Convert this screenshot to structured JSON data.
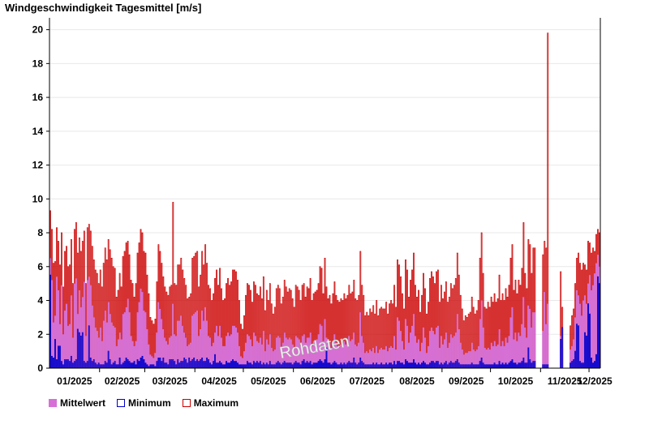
{
  "title": "Windgeschwindigkeit Tagesmittel [m/s]",
  "watermark": "Rohdaten",
  "colors": {
    "mean": "#d670d6",
    "min": "#0000cc",
    "max": "#cc0000",
    "grid": "#e8e8e8"
  },
  "legend": [
    {
      "key": "mean",
      "label": "Mittelwert",
      "style": "filled"
    },
    {
      "key": "min",
      "label": "Minimum",
      "style": "outline"
    },
    {
      "key": "max",
      "label": "Maximum",
      "style": "outline"
    }
  ],
  "chart_data": {
    "type": "bar",
    "ylim": [
      0,
      20.7
    ],
    "y_ticks": [
      0,
      2,
      4,
      6,
      8,
      10,
      12,
      14,
      16,
      18,
      20
    ],
    "x_ticks": [
      "01/2025",
      "02/2025",
      "03/2025",
      "04/2025",
      "05/2025",
      "06/2025",
      "07/2025",
      "08/2025",
      "09/2025",
      "10/2025",
      "11/2025",
      "12/2025"
    ],
    "grid": "horizontal",
    "legend_position": "bottom-left",
    "series_names": {
      "mean": "Mittelwert",
      "min": "Minimum",
      "max": "Maximum"
    },
    "day_groups": [
      {
        "days": 31,
        "max": [
          9.3,
          8.2,
          6.2,
          6.3,
          8.3,
          7.5,
          6.1,
          8.0,
          4.8,
          6.9,
          7.2,
          6.0,
          6.1,
          7.6,
          5.0,
          8.2,
          8.6,
          6.8,
          7.7,
          6.9,
          7.5,
          8.1,
          5.0,
          8.3,
          8.5,
          8.1,
          7.2,
          6.4,
          5.8,
          5.6,
          5.0
        ],
        "mean": [
          6.5,
          5.2,
          2.7,
          3.1,
          5.4,
          4.6,
          2.6,
          4.9,
          2.0,
          3.4,
          3.8,
          2.5,
          2.6,
          4.3,
          1.8,
          5.0,
          5.3,
          3.2,
          4.6,
          3.6,
          4.2,
          5.1,
          1.9,
          5.2,
          5.4,
          4.9,
          3.7,
          3.0,
          2.4,
          2.2,
          1.8
        ],
        "min": [
          5.5,
          0.7,
          0.6,
          1.7,
          0.5,
          1.3,
          1.3,
          0.4,
          0.2,
          0.5,
          0.5,
          0.5,
          0.4,
          0.7,
          0.3,
          0.4,
          0.5,
          2.3,
          2.1,
          1.9,
          2.1,
          0.4,
          0.3,
          0.4,
          2.5,
          0.6,
          0.4,
          0.5,
          0.3,
          0.2,
          0.3
        ]
      },
      {
        "days": 28,
        "max": [
          5.8,
          4.8,
          6.2,
          7.1,
          6.4,
          7.6,
          7.0,
          6.5,
          6.0,
          5.9,
          4.2,
          4.6,
          5.6,
          4.8,
          6.6,
          6.9,
          7.4,
          7.5,
          6.7,
          5.2,
          5.0,
          4.2,
          5.0,
          6.8,
          7.4,
          8.2,
          8.0,
          6.9
        ],
        "mean": [
          2.4,
          1.6,
          2.8,
          3.4,
          2.7,
          3.9,
          3.2,
          2.7,
          2.5,
          2.4,
          1.3,
          1.7,
          2.1,
          1.7,
          3.2,
          3.3,
          3.6,
          4.1,
          3.3,
          1.9,
          1.6,
          1.3,
          1.6,
          3.3,
          3.9,
          4.7,
          4.5,
          3.4
        ],
        "min": [
          0.2,
          0.2,
          0.2,
          0.4,
          0.3,
          1.0,
          0.5,
          0.2,
          0.3,
          0.4,
          0.2,
          0.2,
          0.6,
          0.2,
          0.3,
          0.4,
          0.6,
          0.5,
          0.4,
          0.3,
          0.3,
          0.4,
          0.2,
          0.5,
          0.4,
          0.6,
          0.7,
          0.5
        ]
      },
      {
        "days": 31,
        "max": [
          6.8,
          5.5,
          4.4,
          3.0,
          2.8,
          2.6,
          2.9,
          5.1,
          7.3,
          6.9,
          6.2,
          5.4,
          4.8,
          4.5,
          4.3,
          4.8,
          4.9,
          9.8,
          5.0,
          4.9,
          6.1,
          6.1,
          6.5,
          5.8,
          5.3,
          4.9,
          4.1,
          4.2,
          4.4,
          6.5,
          6.6
        ],
        "mean": [
          3.3,
          2.3,
          1.4,
          0.8,
          0.7,
          0.6,
          0.9,
          2.1,
          3.9,
          3.5,
          2.9,
          2.3,
          1.8,
          1.6,
          1.4,
          1.8,
          1.9,
          3.8,
          2.0,
          1.9,
          2.8,
          2.8,
          3.1,
          2.5,
          2.1,
          1.8,
          1.3,
          1.4,
          1.5,
          3.1,
          3.2
        ],
        "min": [
          0.3,
          0.2,
          0.1,
          0.2,
          0.2,
          0.2,
          0.1,
          0.4,
          0.6,
          0.6,
          0.4,
          0.6,
          0.3,
          0.3,
          0.2,
          0.5,
          0.5,
          0.5,
          0.4,
          0.2,
          0.5,
          0.3,
          0.4,
          0.4,
          0.6,
          0.5,
          0.3,
          0.6,
          0.4,
          0.5,
          0.6
        ]
      },
      {
        "days": 30,
        "max": [
          6.8,
          6.9,
          4.8,
          5.5,
          6.9,
          6.1,
          7.3,
          6.2,
          4.9,
          4.7,
          4.0,
          4.4,
          5.3,
          5.8,
          4.9,
          5.9,
          4.7,
          4.0,
          4.1,
          5.0,
          5.3,
          4.9,
          5.1,
          5.8,
          5.8,
          5.7,
          5.2,
          4.0,
          2.6,
          2.3
        ],
        "mean": [
          3.3,
          3.4,
          1.9,
          2.3,
          3.4,
          2.8,
          3.6,
          2.8,
          1.9,
          1.8,
          1.3,
          1.5,
          2.1,
          2.5,
          1.9,
          2.5,
          1.8,
          1.3,
          1.3,
          1.9,
          2.1,
          1.9,
          2.0,
          2.5,
          2.5,
          2.4,
          2.1,
          1.3,
          0.7,
          0.6
        ],
        "min": [
          0.4,
          0.5,
          0.4,
          0.5,
          0.6,
          0.4,
          0.4,
          0.6,
          0.5,
          0.3,
          0.2,
          0.4,
          0.8,
          0.3,
          0.3,
          0.4,
          0.3,
          0.2,
          0.2,
          0.4,
          0.3,
          0.3,
          0.4,
          0.5,
          0.4,
          0.4,
          0.3,
          0.2,
          0.2,
          0.2
        ]
      },
      {
        "days": 31,
        "max": [
          3.1,
          4.3,
          5.0,
          4.9,
          4.6,
          3.9,
          5.1,
          4.9,
          4.4,
          4.3,
          4.8,
          4.1,
          5.4,
          3.4,
          4.6,
          4.0,
          5.0,
          3.8,
          3.2,
          3.6,
          4.7,
          4.9,
          4.7,
          3.8,
          4.2,
          5.2,
          4.8,
          4.5,
          4.7,
          4.6,
          4.1
        ],
        "mean": [
          1.0,
          1.5,
          2.0,
          1.9,
          1.7,
          1.3,
          2.1,
          1.9,
          1.6,
          1.5,
          1.8,
          1.4,
          2.2,
          1.0,
          1.7,
          1.4,
          2.0,
          1.2,
          1.0,
          1.1,
          1.8,
          1.9,
          1.8,
          1.2,
          1.5,
          2.1,
          1.8,
          1.7,
          1.8,
          1.7,
          1.4
        ],
        "min": [
          0.2,
          0.2,
          0.4,
          0.3,
          0.3,
          0.2,
          0.4,
          0.3,
          0.4,
          0.3,
          0.4,
          0.2,
          0.3,
          0.2,
          0.3,
          0.2,
          0.4,
          0.2,
          0.2,
          0.2,
          0.3,
          0.4,
          0.3,
          0.2,
          0.3,
          0.4,
          0.3,
          0.3,
          0.3,
          0.3,
          0.2
        ]
      },
      {
        "days": 30,
        "max": [
          3.6,
          4.9,
          4.8,
          4.6,
          4.0,
          4.9,
          5.0,
          4.2,
          4.8,
          4.7,
          5.3,
          4.0,
          4.4,
          4.5,
          4.6,
          5.0,
          6.0,
          5.9,
          4.4,
          6.5,
          4.8,
          4.1,
          4.3,
          3.8,
          4.4,
          5.1,
          4.3,
          4.0,
          3.9,
          4.1
        ],
        "mean": [
          1.2,
          1.9,
          1.8,
          1.7,
          1.3,
          1.9,
          2.0,
          1.5,
          1.8,
          1.8,
          2.1,
          1.3,
          1.6,
          1.6,
          1.7,
          2.0,
          2.6,
          2.5,
          1.6,
          2.9,
          1.8,
          1.4,
          1.5,
          1.2,
          1.6,
          2.0,
          1.5,
          1.3,
          1.2,
          1.4
        ],
        "min": [
          0.3,
          0.4,
          0.3,
          0.3,
          0.2,
          0.4,
          0.5,
          0.3,
          0.4,
          0.3,
          0.4,
          0.2,
          0.3,
          0.3,
          0.3,
          0.4,
          0.5,
          0.4,
          0.3,
          0.5,
          1.2,
          0.3,
          0.3,
          0.2,
          0.3,
          0.4,
          0.3,
          0.2,
          0.2,
          0.3
        ]
      },
      {
        "days": 31,
        "max": [
          4.0,
          4.4,
          4.1,
          4.3,
          4.9,
          4.4,
          4.5,
          5.2,
          4.1,
          4.0,
          4.3,
          6.9,
          4.9,
          4.3,
          3.1,
          3.3,
          3.1,
          3.5,
          3.3,
          3.7,
          3.2,
          4.0,
          3.1,
          3.5,
          3.6,
          3.5,
          3.5,
          3.9,
          3.2,
          3.8,
          4.0
        ],
        "mean": [
          1.3,
          1.6,
          1.4,
          1.5,
          1.9,
          1.6,
          1.7,
          2.1,
          1.4,
          1.3,
          1.5,
          3.3,
          1.9,
          1.5,
          0.9,
          1.0,
          0.9,
          1.1,
          1.0,
          1.2,
          0.9,
          1.3,
          0.9,
          1.1,
          1.2,
          1.1,
          1.1,
          1.3,
          1.0,
          1.2,
          1.3
        ],
        "min": [
          0.2,
          0.3,
          0.2,
          0.3,
          0.4,
          0.3,
          0.3,
          0.6,
          0.3,
          0.2,
          0.3,
          0.6,
          0.4,
          0.3,
          0.2,
          0.2,
          0.2,
          0.2,
          0.2,
          0.3,
          0.2,
          0.3,
          0.2,
          0.2,
          0.3,
          0.2,
          0.2,
          0.3,
          0.2,
          0.3,
          0.3
        ]
      },
      {
        "days": 31,
        "max": [
          3.8,
          4.9,
          3.6,
          6.4,
          6.1,
          5.4,
          4.4,
          3.5,
          6.4,
          5.8,
          4.2,
          5.2,
          5.8,
          6.8,
          4.9,
          4.2,
          4.6,
          3.3,
          4.3,
          5.6,
          4.7,
          3.2,
          3.9,
          5.3,
          5.7,
          5.4,
          5.0,
          5.7,
          5.8,
          3.9,
          4.9
        ],
        "mean": [
          1.2,
          1.9,
          1.1,
          3.0,
          2.8,
          2.2,
          1.6,
          1.1,
          2.9,
          2.5,
          1.5,
          2.1,
          2.5,
          3.2,
          1.9,
          1.5,
          1.7,
          1.0,
          1.5,
          2.4,
          1.8,
          0.9,
          1.3,
          2.2,
          2.4,
          2.2,
          2.0,
          2.4,
          2.5,
          1.2,
          1.9
        ],
        "min": [
          0.2,
          0.4,
          0.2,
          0.4,
          0.4,
          0.3,
          0.3,
          0.2,
          0.5,
          0.4,
          0.3,
          0.3,
          0.3,
          0.5,
          0.3,
          0.2,
          0.3,
          0.2,
          0.3,
          0.4,
          0.3,
          0.2,
          0.2,
          0.3,
          0.4,
          0.4,
          0.3,
          0.4,
          0.4,
          0.2,
          0.3
        ]
      },
      {
        "days": 30,
        "max": [
          4.1,
          4.5,
          5.1,
          3.9,
          4.2,
          5.0,
          4.7,
          4.9,
          5.3,
          6.8,
          5.5,
          4.3,
          3.5,
          2.8,
          3.1,
          3.0,
          3.2,
          3.3,
          4.2,
          3.6,
          3.2,
          3.4,
          4.0,
          6.5,
          8.0,
          5.6,
          3.6,
          3.5,
          3.9,
          3.6
        ],
        "mean": [
          1.4,
          1.7,
          2.1,
          1.2,
          1.5,
          2.0,
          1.8,
          1.9,
          2.1,
          3.2,
          2.3,
          1.5,
          1.1,
          0.8,
          0.9,
          0.9,
          1.0,
          1.0,
          1.5,
          1.1,
          1.0,
          1.1,
          1.3,
          2.9,
          4.0,
          2.4,
          1.2,
          1.1,
          1.2,
          1.1
        ],
        "min": [
          0.2,
          0.3,
          0.4,
          0.2,
          0.3,
          0.4,
          0.3,
          0.3,
          0.4,
          0.5,
          0.3,
          0.2,
          0.2,
          0.2,
          0.2,
          0.2,
          0.2,
          0.2,
          0.3,
          0.2,
          0.2,
          0.2,
          0.2,
          0.4,
          0.6,
          0.3,
          0.2,
          0.2,
          0.2,
          0.2
        ]
      },
      {
        "days": 31,
        "max": [
          4.2,
          3.9,
          4.4,
          3.9,
          4.1,
          5.5,
          4.0,
          4.4,
          4.0,
          4.7,
          4.2,
          4.9,
          6.5,
          7.3,
          4.6,
          5.2,
          4.4,
          5.2,
          4.9,
          5.9,
          8.6,
          5.6,
          4.7,
          7.6,
          7.3,
          5.6,
          7.1,
          7.1,
          0,
          0,
          0
        ],
        "mean": [
          1.5,
          1.3,
          1.6,
          1.3,
          1.4,
          2.3,
          1.3,
          1.6,
          1.3,
          1.8,
          1.5,
          1.9,
          3.0,
          3.6,
          1.7,
          2.1,
          1.6,
          2.1,
          1.9,
          2.6,
          4.2,
          2.4,
          1.8,
          3.7,
          3.5,
          2.4,
          3.3,
          3.3,
          0,
          0,
          0
        ],
        "min": [
          0.2,
          0.2,
          0.3,
          0.2,
          0.2,
          0.4,
          0.2,
          0.3,
          0.2,
          0.3,
          0.2,
          0.3,
          0.4,
          0.5,
          0.3,
          0.3,
          0.2,
          0.3,
          0.3,
          0.4,
          0.6,
          0.3,
          0.3,
          1.2,
          0.5,
          0.3,
          0.4,
          0.4,
          0,
          0,
          0
        ]
      },
      {
        "days": 30,
        "max": [
          0,
          6.7,
          7.5,
          7.1,
          19.8,
          0,
          0,
          0,
          0,
          0,
          0,
          0,
          5.7,
          3.6,
          0,
          0,
          0,
          0,
          2.5,
          3.1,
          3.5,
          5.0,
          6.5,
          6.8,
          6.2,
          5.8,
          6.2,
          6.1,
          5.8,
          7.5
        ],
        "mean": [
          0,
          2.2,
          4.5,
          2.6,
          3.8,
          0,
          0,
          0,
          0,
          0,
          0,
          0,
          1.9,
          1.2,
          0,
          0,
          0,
          0,
          1.1,
          1.3,
          1.7,
          3.0,
          4.6,
          4.3,
          3.8,
          3.1,
          4.0,
          4.3,
          3.8,
          5.0
        ],
        "min": [
          0,
          0.2,
          0.2,
          0.2,
          0.2,
          0,
          0,
          0,
          0,
          0,
          0,
          0,
          1.7,
          2.4,
          0,
          0,
          0,
          0,
          0.3,
          0.4,
          0.5,
          1.0,
          2.6,
          2.5,
          0.4,
          0.3,
          0.3,
          2.1,
          1.9,
          3.8
        ]
      },
      {
        "days": 7,
        "max": [
          7.4,
          6.8,
          7.1,
          6.9,
          7.9,
          8.2,
          8.0
        ],
        "mean": [
          5.5,
          4.6,
          4.9,
          5.6,
          6.2,
          6.7,
          6.0
        ],
        "min": [
          3.2,
          0.6,
          0.3,
          0.4,
          0.8,
          5.4,
          5.0
        ]
      }
    ]
  }
}
